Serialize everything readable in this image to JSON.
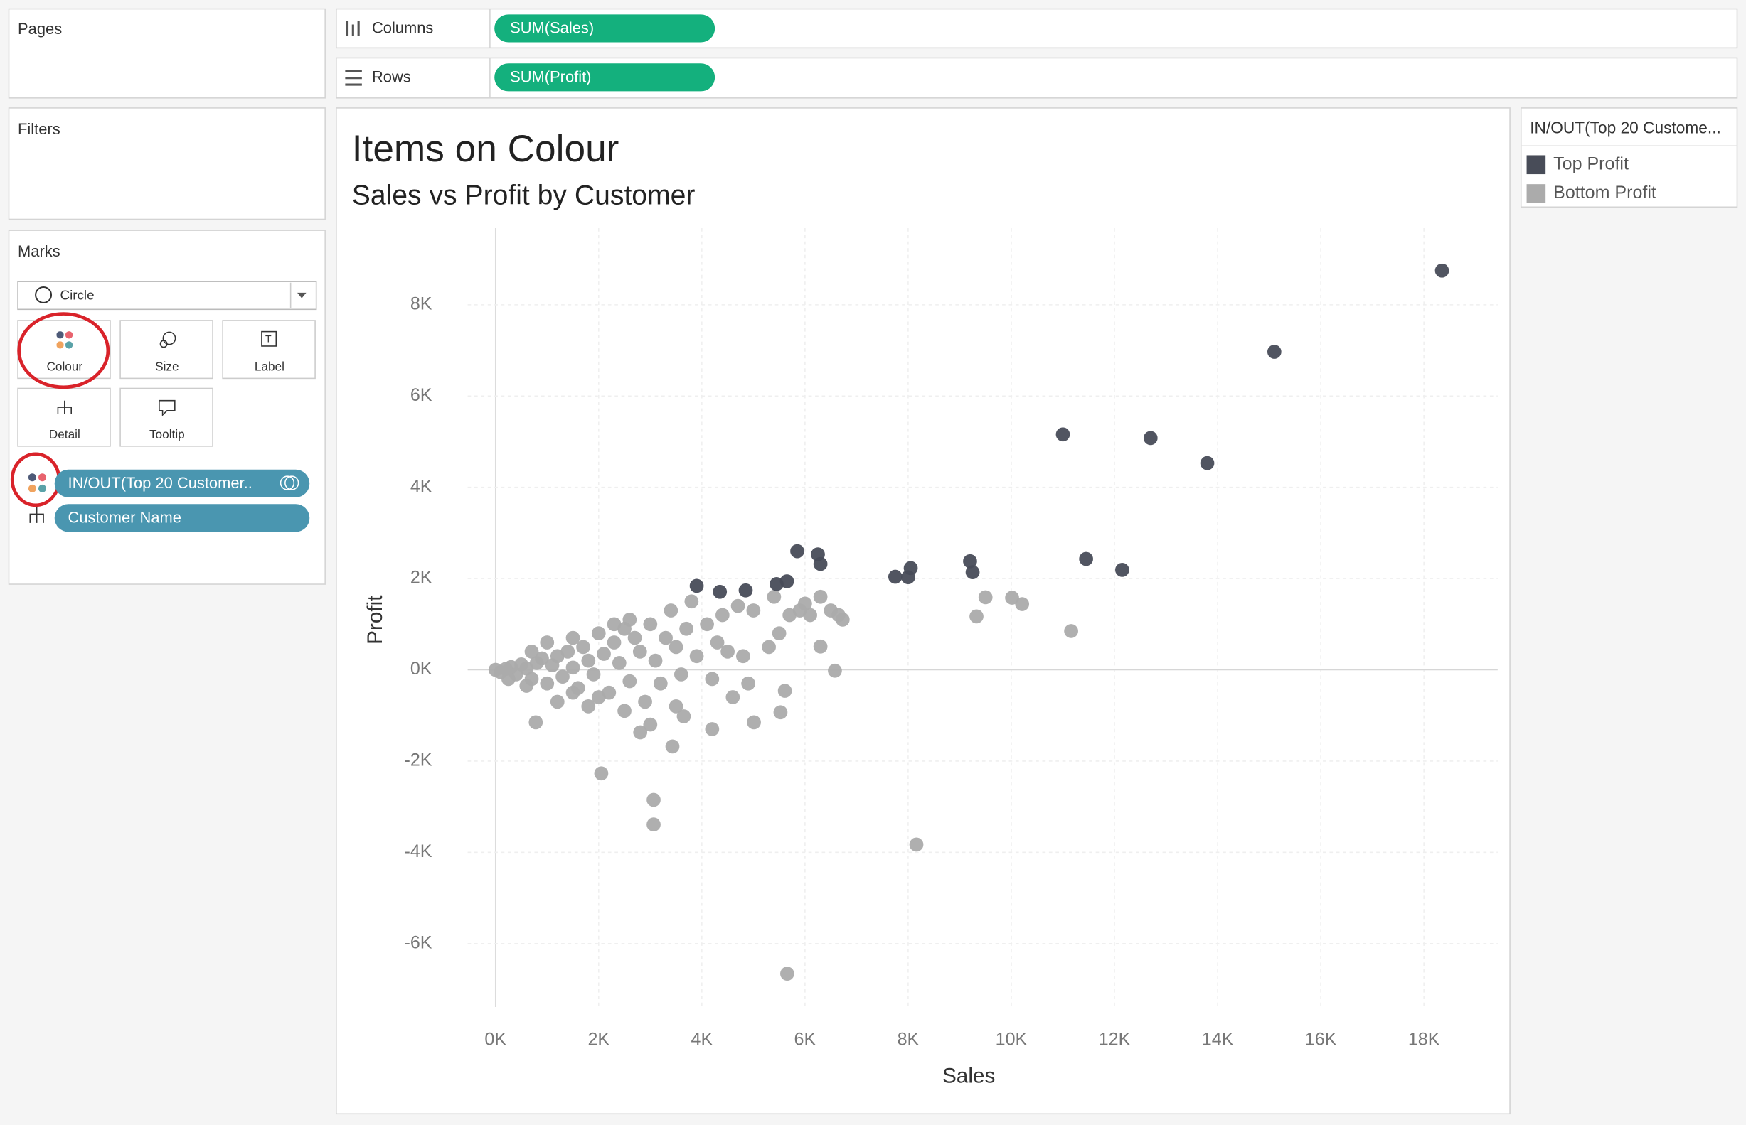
{
  "pages": {
    "title": "Pages"
  },
  "filters": {
    "title": "Filters"
  },
  "marks": {
    "title": "Marks",
    "mark_type": "Circle",
    "buttons": [
      "Colour",
      "Size",
      "Label",
      "Detail",
      "Tooltip"
    ],
    "pills": [
      "IN/OUT(Top 20 Customer..",
      "Customer Name"
    ]
  },
  "shelves": {
    "columns": {
      "label": "Columns",
      "pill": "SUM(Sales)"
    },
    "rows": {
      "label": "Rows",
      "pill": "SUM(Profit)"
    }
  },
  "chart_data": {
    "type": "scatter",
    "title": "Items on Colour",
    "subtitle": "Sales vs Profit by Customer",
    "x_label": "Sales",
    "y_label": "Profit",
    "legend_title": "IN/OUT(Top 20 Custome...",
    "xlim": [
      -540,
      19430
    ],
    "ylim": [
      -7390,
      9680
    ],
    "grid": true,
    "xticks": [
      {
        "value": 0,
        "label": "0K"
      },
      {
        "value": 2000,
        "label": "2K"
      },
      {
        "value": 4000,
        "label": "4K"
      },
      {
        "value": 6000,
        "label": "6K"
      },
      {
        "value": 8000,
        "label": "8K"
      },
      {
        "value": 10000,
        "label": "10K"
      },
      {
        "value": 12000,
        "label": "12K"
      },
      {
        "value": 14000,
        "label": "14K"
      },
      {
        "value": 16000,
        "label": "16K"
      },
      {
        "value": 18000,
        "label": "18K"
      }
    ],
    "yticks": [
      {
        "value": -6000,
        "label": "-6K"
      },
      {
        "value": -4000,
        "label": "-4K"
      },
      {
        "value": -2000,
        "label": "-2K"
      },
      {
        "value": 0,
        "label": "0K"
      },
      {
        "value": 2000,
        "label": "2K"
      },
      {
        "value": 4000,
        "label": "4K"
      },
      {
        "value": 6000,
        "label": "6K"
      },
      {
        "value": 8000,
        "label": "8K"
      }
    ],
    "series": [
      {
        "name": "Bottom Profit",
        "color": "#ababab",
        "x": [
          0,
          100,
          200,
          300,
          400,
          500,
          600,
          700,
          800,
          900,
          1000,
          1100,
          1200,
          1300,
          1400,
          1500,
          1600,
          1700,
          1800,
          1900,
          2000,
          2100,
          2200,
          2300,
          2400,
          2500,
          2600,
          2700,
          2800,
          2900,
          3000,
          3100,
          3200,
          3300,
          3400,
          3500,
          3600,
          3700,
          3800,
          3900,
          4100,
          4200,
          4300,
          4400,
          4500,
          4600,
          4700,
          4800,
          4900,
          5000,
          5300,
          5400,
          5500,
          5700,
          5900,
          6100,
          6300,
          6500,
          6650,
          6000,
          1200,
          1500,
          2500,
          3000,
          4200,
          1000,
          700,
          1500,
          2000,
          2600,
          3500,
          250,
          600,
          1800,
          2300,
          2050,
          3065,
          3065,
          8160,
          5655,
          11160,
          9325,
          9500,
          10015,
          10210,
          780,
          3430,
          2805,
          3650,
          5010,
          5525,
          5610,
          6580,
          6730,
          6300
        ],
        "values": [
          0,
          -50,
          20,
          60,
          -100,
          120,
          30,
          -200,
          150,
          250,
          -300,
          100,
          300,
          -150,
          400,
          50,
          -400,
          500,
          200,
          -100,
          800,
          350,
          -500,
          600,
          150,
          900,
          -250,
          700,
          400,
          -700,
          1000,
          200,
          -300,
          700,
          1300,
          500,
          -100,
          900,
          1500,
          300,
          1000,
          -200,
          600,
          1200,
          400,
          -600,
          1400,
          300,
          -300,
          1300,
          500,
          1600,
          800,
          1200,
          1300,
          1200,
          1600,
          1300,
          1200,
          1450,
          -700,
          -500,
          -900,
          -1200,
          -1300,
          600,
          400,
          700,
          -600,
          1100,
          -800,
          -200,
          -350,
          -800,
          1000,
          -2270,
          -2850,
          -3390,
          -3830,
          -6660,
          850,
          1170,
          1590,
          1580,
          1440,
          -1150,
          -1680,
          -1370,
          -1020,
          -1150,
          -930,
          -460,
          -20,
          1100,
          510
        ]
      },
      {
        "name": "Top Profit",
        "color": "#484c58",
        "x": [
          18350,
          15100,
          11000,
          12700,
          13800,
          5850,
          6250,
          6300,
          8050,
          9200,
          9250,
          11450,
          12150,
          7750,
          8000,
          5650,
          5450,
          4850,
          3900,
          4350
        ],
        "values": [
          8750,
          6970,
          5160,
          5080,
          4530,
          2600,
          2530,
          2320,
          2230,
          2380,
          2140,
          2430,
          2190,
          2040,
          2030,
          1940,
          1880,
          1740,
          1840,
          1710
        ]
      }
    ]
  }
}
